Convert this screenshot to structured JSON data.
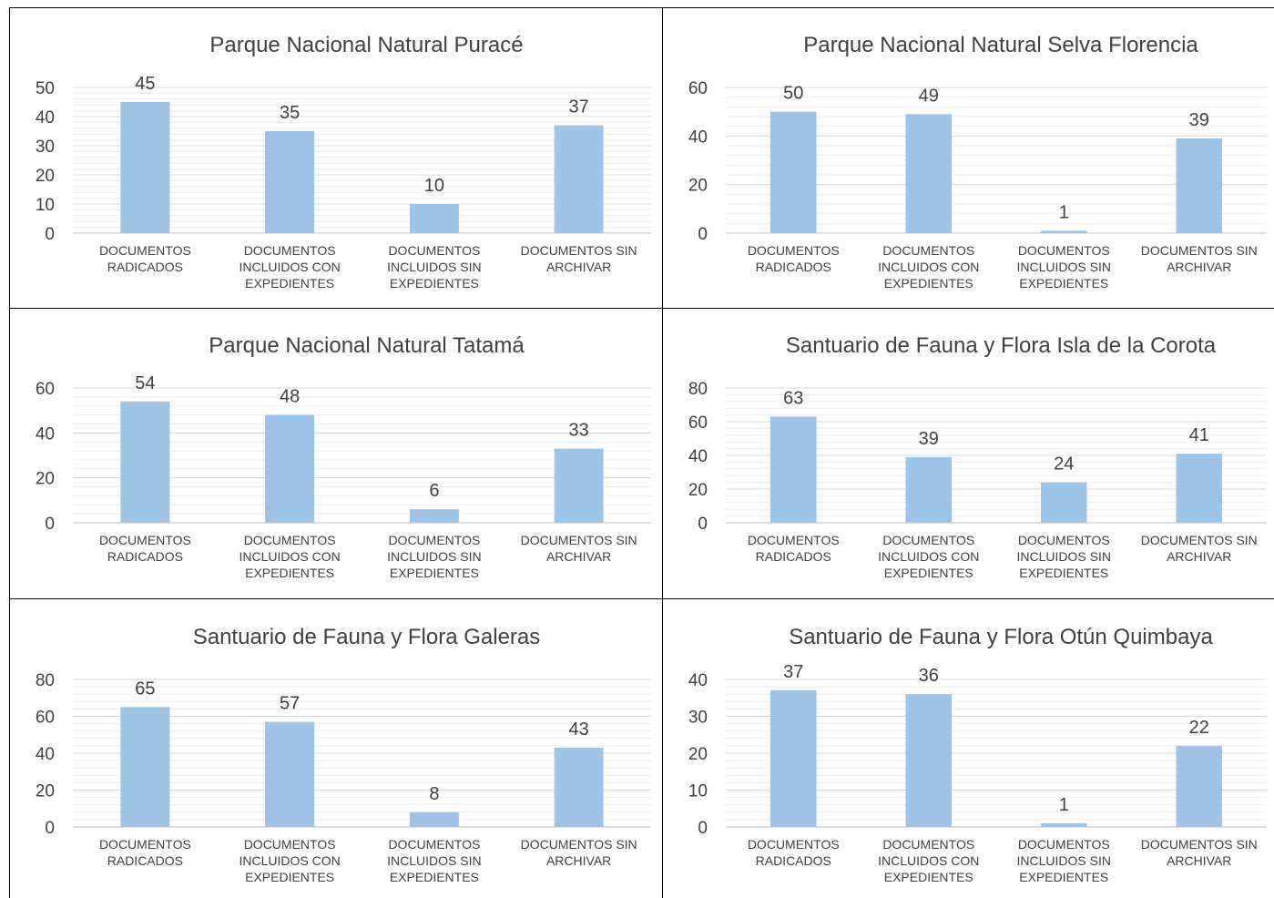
{
  "colors": {
    "bar": "#9dc3e6",
    "grid": "#d9d9d9",
    "gridMinor": "#ececec",
    "text": "#404040",
    "axis": "#bfbfbf"
  },
  "charts": [
    {
      "chart_data": {
        "type": "bar",
        "title": "Parque Nacional Natural Puracé",
        "categories": [
          "DOCUMENTOS RADICADOS",
          "DOCUMENTOS INCLUIDOS CON EXPEDIENTES",
          "DOCUMENTOS INCLUIDOS SIN EXPEDIENTES",
          "DOCUMENTOS SIN ARCHIVAR"
        ],
        "values": [
          45,
          35,
          10,
          37
        ],
        "ylim": [
          0,
          50
        ],
        "yticks": [
          0,
          10,
          20,
          30,
          40,
          50
        ],
        "xlabel": "",
        "ylabel": "",
        "grid": true,
        "legend": "none"
      }
    },
    {
      "chart_data": {
        "type": "bar",
        "title": "Parque Nacional Natural Selva Florencia",
        "categories": [
          "DOCUMENTOS RADICADOS",
          "DOCUMENTOS INCLUIDOS CON EXPEDIENTES",
          "DOCUMENTOS INCLUIDOS SIN EXPEDIENTES",
          "DOCUMENTOS SIN ARCHIVAR"
        ],
        "values": [
          50,
          49,
          1,
          39
        ],
        "ylim": [
          0,
          60
        ],
        "yticks": [
          0,
          20,
          40,
          60
        ],
        "xlabel": "",
        "ylabel": "",
        "grid": true,
        "legend": "none"
      }
    },
    {
      "chart_data": {
        "type": "bar",
        "title": "Parque Nacional Natural Tatamá",
        "categories": [
          "DOCUMENTOS RADICADOS",
          "DOCUMENTOS INCLUIDOS CON EXPEDIENTES",
          "DOCUMENTOS INCLUIDOS SIN EXPEDIENTES",
          "DOCUMENTOS SIN ARCHIVAR"
        ],
        "values": [
          54,
          48,
          6,
          33
        ],
        "ylim": [
          0,
          60
        ],
        "yticks": [
          0,
          20,
          40,
          60
        ],
        "xlabel": "",
        "ylabel": "",
        "grid": true,
        "legend": "none"
      }
    },
    {
      "chart_data": {
        "type": "bar",
        "title": "Santuario de Fauna y Flora Isla de la Corota",
        "categories": [
          "DOCUMENTOS RADICADOS",
          "DOCUMENTOS INCLUIDOS CON EXPEDIENTES",
          "DOCUMENTOS INCLUIDOS SIN EXPEDIENTES",
          "DOCUMENTOS SIN ARCHIVAR"
        ],
        "values": [
          63,
          39,
          24,
          41
        ],
        "ylim": [
          0,
          80
        ],
        "yticks": [
          0,
          20,
          40,
          60,
          80
        ],
        "xlabel": "",
        "ylabel": "",
        "grid": true,
        "legend": "none"
      }
    },
    {
      "chart_data": {
        "type": "bar",
        "title": "Santuario de Fauna y Flora Galeras",
        "categories": [
          "DOCUMENTOS RADICADOS",
          "DOCUMENTOS INCLUIDOS CON EXPEDIENTES",
          "DOCUMENTOS INCLUIDOS SIN EXPEDIENTES",
          "DOCUMENTOS SIN ARCHIVAR"
        ],
        "values": [
          65,
          57,
          8,
          43
        ],
        "ylim": [
          0,
          80
        ],
        "yticks": [
          0,
          20,
          40,
          60,
          80
        ],
        "xlabel": "",
        "ylabel": "",
        "grid": true,
        "legend": "none"
      }
    },
    {
      "chart_data": {
        "type": "bar",
        "title": "Santuario de Fauna y Flora Otún Quimbaya",
        "categories": [
          "DOCUMENTOS RADICADOS",
          "DOCUMENTOS INCLUIDOS CON EXPEDIENTES",
          "DOCUMENTOS INCLUIDOS SIN EXPEDIENTES",
          "DOCUMENTOS SIN ARCHIVAR"
        ],
        "values": [
          37,
          36,
          1,
          22
        ],
        "ylim": [
          0,
          40
        ],
        "yticks": [
          0,
          10,
          20,
          30,
          40
        ],
        "xlabel": "",
        "ylabel": "",
        "grid": true,
        "legend": "none"
      }
    }
  ]
}
